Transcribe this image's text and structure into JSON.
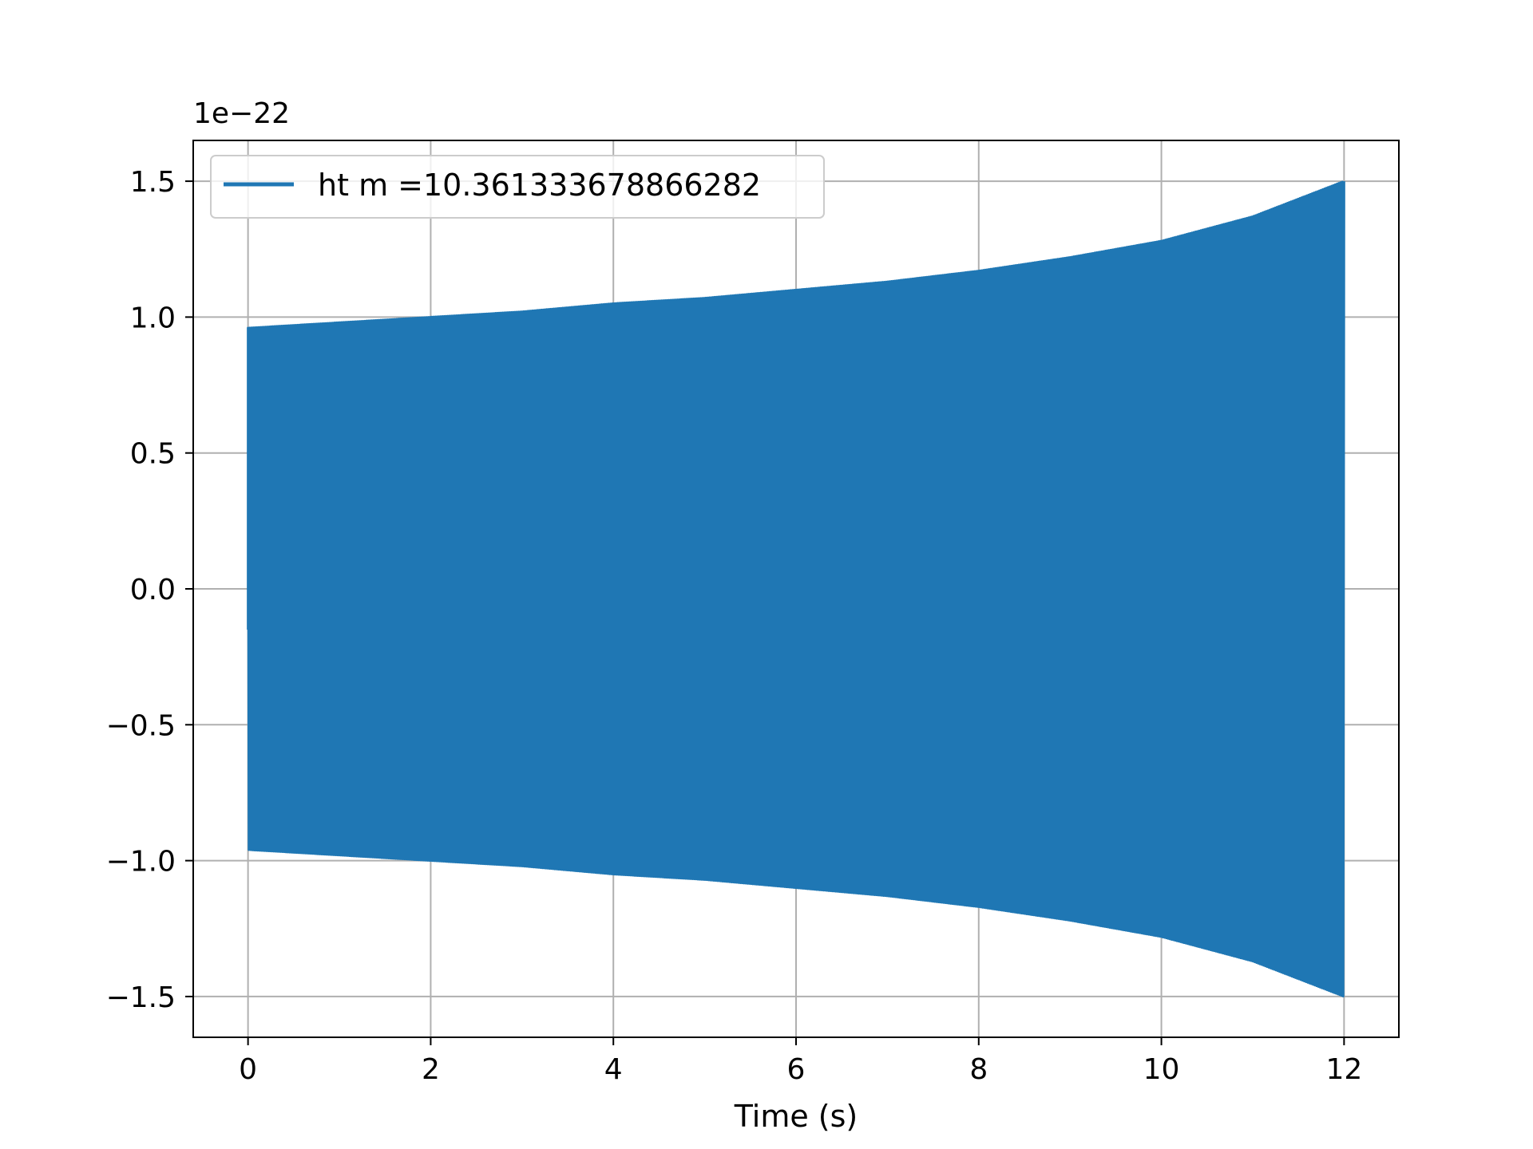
{
  "chart_data": {
    "type": "line",
    "title": "",
    "xlabel": "Time (s)",
    "ylabel": "",
    "y_offset_label": "1e−22",
    "xlim": [
      -0.6,
      12.6
    ],
    "ylim": [
      -1.65,
      1.65
    ],
    "x_ticks": [
      0,
      2,
      4,
      6,
      8,
      10,
      12
    ],
    "x_tick_labels": [
      "0",
      "2",
      "4",
      "6",
      "8",
      "10",
      "12"
    ],
    "y_ticks": [
      1.5,
      1.0,
      0.5,
      0.0,
      -0.5,
      -1.0,
      -1.5
    ],
    "y_tick_labels": [
      "1.5",
      "1.0",
      "0.5",
      "0.0",
      "−0.5",
      "−1.0",
      "−1.5"
    ],
    "grid": true,
    "legend_position": "upper-left",
    "series": [
      {
        "name": "ht m =10.361333678866282",
        "color": "#1f77b4",
        "description": "oscillating strain signal with growing amplitude (chirp)",
        "x": [
          0,
          1,
          2,
          3,
          4,
          5,
          6,
          7,
          8,
          9,
          10,
          11,
          12
        ],
        "envelope": [
          0.96,
          0.98,
          1.0,
          1.02,
          1.05,
          1.07,
          1.1,
          1.13,
          1.17,
          1.22,
          1.28,
          1.37,
          1.5
        ]
      }
    ]
  }
}
